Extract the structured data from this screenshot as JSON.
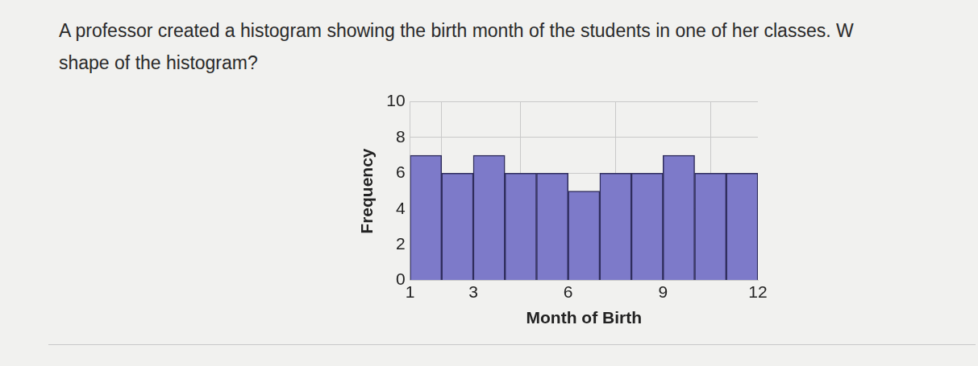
{
  "chart_data": {
    "type": "histogram",
    "title": [
      "A professor created a histogram showing the birth month of the students in one of her classes. W",
      "shape of the histogram?"
    ],
    "x_label": "Month of Birth",
    "y_label": "Frequency",
    "bins": [
      1,
      2,
      3,
      4,
      5,
      6,
      7,
      8,
      9,
      10,
      11,
      12
    ],
    "values": [
      7,
      6,
      7,
      6,
      6,
      5,
      6,
      6,
      7,
      6,
      6
    ],
    "color": "#7d7ac9",
    "xlim": [
      1,
      12
    ],
    "xticks": [
      1,
      3,
      6,
      9,
      12
    ],
    "ylim": [
      0,
      10
    ],
    "yticks": [
      0,
      2,
      4,
      6,
      8,
      10
    ],
    "grid": true
  }
}
